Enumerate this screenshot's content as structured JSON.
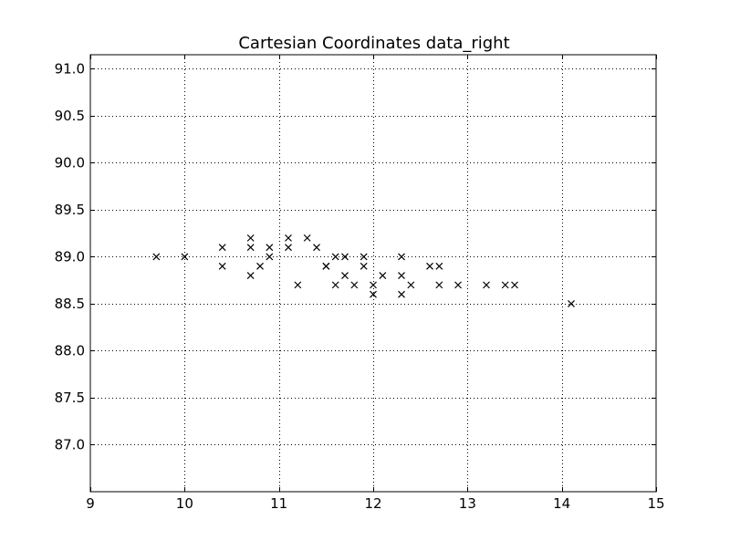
{
  "chart_data": {
    "type": "scatter",
    "title": "Cartesian Coordinates data_right",
    "xlabel": "",
    "ylabel": "",
    "xlim": [
      9,
      15
    ],
    "ylim": [
      86.5,
      91.15
    ],
    "x_ticks": [
      9,
      10,
      11,
      12,
      13,
      14,
      15
    ],
    "y_ticks": [
      87.0,
      87.5,
      88.0,
      88.5,
      89.0,
      89.5,
      90.0,
      90.5,
      91.0
    ],
    "x_tick_labels": [
      "9",
      "10",
      "11",
      "12",
      "13",
      "14",
      "15"
    ],
    "y_tick_labels": [
      "87.0",
      "87.5",
      "88.0",
      "88.5",
      "89.0",
      "89.5",
      "90.0",
      "90.5",
      "91.0"
    ],
    "grid": true,
    "grid_style": "dotted",
    "marker": "x",
    "marker_color": "#000000",
    "points": [
      {
        "x": 9.7,
        "y": 89.0
      },
      {
        "x": 10.0,
        "y": 89.0
      },
      {
        "x": 10.4,
        "y": 89.1
      },
      {
        "x": 10.4,
        "y": 88.9
      },
      {
        "x": 10.7,
        "y": 89.2
      },
      {
        "x": 10.7,
        "y": 89.1
      },
      {
        "x": 10.7,
        "y": 88.8
      },
      {
        "x": 10.8,
        "y": 88.9
      },
      {
        "x": 10.9,
        "y": 89.1
      },
      {
        "x": 10.9,
        "y": 89.0
      },
      {
        "x": 11.1,
        "y": 89.2
      },
      {
        "x": 11.1,
        "y": 89.1
      },
      {
        "x": 11.2,
        "y": 88.7
      },
      {
        "x": 11.3,
        "y": 89.2
      },
      {
        "x": 11.4,
        "y": 89.1
      },
      {
        "x": 11.5,
        "y": 88.9
      },
      {
        "x": 11.5,
        "y": 88.9
      },
      {
        "x": 11.6,
        "y": 89.0
      },
      {
        "x": 11.6,
        "y": 88.7
      },
      {
        "x": 11.7,
        "y": 89.0
      },
      {
        "x": 11.7,
        "y": 88.8
      },
      {
        "x": 11.8,
        "y": 88.7
      },
      {
        "x": 11.9,
        "y": 89.0
      },
      {
        "x": 11.9,
        "y": 88.9
      },
      {
        "x": 12.0,
        "y": 88.7
      },
      {
        "x": 12.0,
        "y": 88.6
      },
      {
        "x": 12.1,
        "y": 88.8
      },
      {
        "x": 12.3,
        "y": 89.0
      },
      {
        "x": 12.3,
        "y": 88.8
      },
      {
        "x": 12.3,
        "y": 88.6
      },
      {
        "x": 12.4,
        "y": 88.7
      },
      {
        "x": 12.6,
        "y": 88.9
      },
      {
        "x": 12.7,
        "y": 88.9
      },
      {
        "x": 12.7,
        "y": 88.7
      },
      {
        "x": 12.9,
        "y": 88.7
      },
      {
        "x": 13.2,
        "y": 88.7
      },
      {
        "x": 13.4,
        "y": 88.7
      },
      {
        "x": 13.5,
        "y": 88.7
      },
      {
        "x": 14.1,
        "y": 88.5
      }
    ]
  }
}
